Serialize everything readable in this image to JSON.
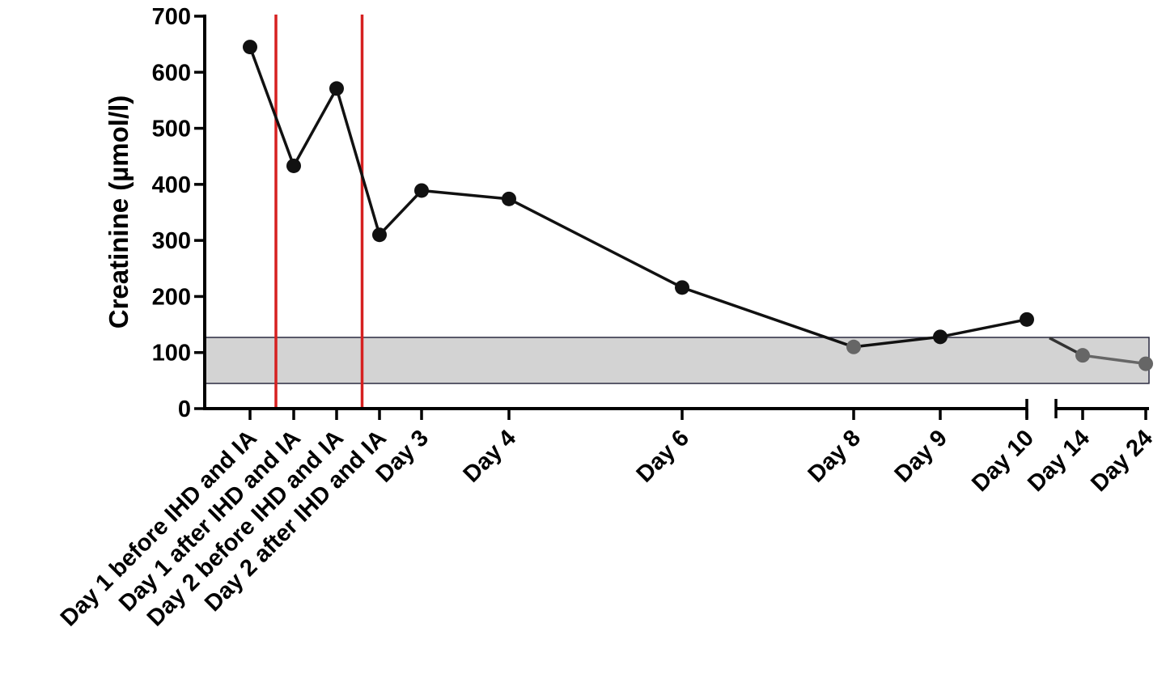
{
  "chart_data": {
    "type": "line",
    "ylabel": "Creatinine (µmol/l)",
    "xlabel": "",
    "ylim": [
      0,
      700
    ],
    "yticks": [
      0,
      100,
      200,
      300,
      400,
      500,
      600,
      700
    ],
    "categories": [
      "Day 1 before IHD and IA",
      "Day 1 after IHD and IA",
      "Day 2 before IHD and IA",
      "Day 2 after IHD and IA",
      "Day 3",
      "Day 4",
      "Day 6",
      "Day 8",
      "Day 9",
      "Day 10",
      "Day 14",
      "Day 24"
    ],
    "series": [
      {
        "values": [
          645,
          433,
          571,
          310,
          389,
          374,
          216,
          110,
          128,
          159,
          95,
          80
        ]
      }
    ],
    "reference_range": [
      45,
      127
    ],
    "reference_range_color": "#d3d3d3",
    "intervention_lines_between": [
      [
        0,
        1
      ],
      [
        2,
        3
      ]
    ],
    "intervention_line_color": "#d62020",
    "axis_break_between": [
      9,
      10
    ],
    "colors": {
      "line": "#111111",
      "marker": "#111111",
      "marker_in_range": "#666666"
    },
    "grid": false
  }
}
